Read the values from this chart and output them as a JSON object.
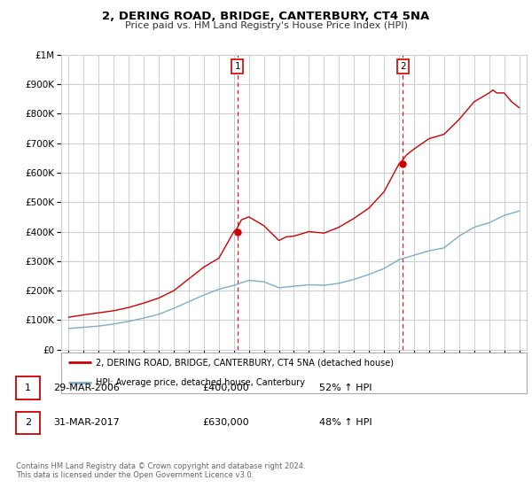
{
  "title": "2, DERING ROAD, BRIDGE, CANTERBURY, CT4 5NA",
  "subtitle": "Price paid vs. HM Land Registry's House Price Index (HPI)",
  "legend_line1": "2, DERING ROAD, BRIDGE, CANTERBURY, CT4 5NA (detached house)",
  "legend_line2": "HPI: Average price, detached house, Canterbury",
  "footer1": "Contains HM Land Registry data © Crown copyright and database right 2024.",
  "footer2": "This data is licensed under the Open Government Licence v3.0.",
  "transactions": [
    {
      "label": "1",
      "date": "29-MAR-2006",
      "price": "£400,000",
      "hpi": "52% ↑ HPI",
      "year": 2006.23,
      "price_val": 400000
    },
    {
      "label": "2",
      "date": "31-MAR-2017",
      "price": "£630,000",
      "hpi": "48% ↑ HPI",
      "year": 2017.25,
      "price_val": 630000
    }
  ],
  "ylim": [
    0,
    1000000
  ],
  "xlim": [
    1994.5,
    2025.5
  ],
  "red_color": "#cc0000",
  "blue_color": "#7aaccc",
  "background_color": "#ffffff",
  "grid_color": "#cccccc",
  "hpi_x": [
    1995,
    1995.5,
    1996,
    1996.5,
    1997,
    1997.5,
    1998,
    1998.5,
    1999,
    1999.5,
    2000,
    2000.5,
    2001,
    2001.5,
    2002,
    2002.5,
    2003,
    2003.5,
    2004,
    2004.5,
    2005,
    2005.5,
    2006,
    2006.5,
    2007,
    2007.5,
    2008,
    2008.5,
    2009,
    2009.5,
    2010,
    2010.5,
    2011,
    2011.5,
    2012,
    2012.5,
    2013,
    2013.5,
    2014,
    2014.5,
    2015,
    2015.5,
    2016,
    2016.5,
    2017,
    2017.5,
    2018,
    2018.5,
    2019,
    2019.5,
    2020,
    2020.5,
    2021,
    2021.5,
    2022,
    2022.5,
    2023,
    2023.5,
    2024,
    2024.5,
    2025
  ],
  "hpi_y": [
    72000,
    74000,
    76000,
    78000,
    80000,
    83500,
    87000,
    91500,
    96000,
    101500,
    107000,
    113500,
    120000,
    130000,
    140000,
    151500,
    163000,
    174000,
    185000,
    195000,
    205000,
    211500,
    218000,
    226500,
    235000,
    232500,
    230000,
    220000,
    210000,
    212500,
    215000,
    217500,
    220000,
    219000,
    218000,
    221500,
    225000,
    231500,
    238000,
    246500,
    255000,
    265000,
    275000,
    290000,
    305000,
    312500,
    320000,
    327500,
    335000,
    340000,
    345000,
    365000,
    385000,
    400000,
    415000,
    422500,
    430000,
    442500,
    455000,
    462500,
    470000
  ],
  "price_x": [
    1995,
    1995.5,
    1996,
    1996.5,
    1997,
    1997.5,
    1998,
    1998.5,
    1999,
    1999.5,
    2000,
    2000.5,
    2001,
    2001.5,
    2002,
    2002.5,
    2003,
    2003.5,
    2004,
    2004.5,
    2005,
    2005.5,
    2006,
    2006.2,
    2006.5,
    2007,
    2007.5,
    2008,
    2008.5,
    2009,
    2009.5,
    2010,
    2010.5,
    2011,
    2011.5,
    2012,
    2012.5,
    2013,
    2013.5,
    2014,
    2014.5,
    2015,
    2015.5,
    2016,
    2016.5,
    2017,
    2017.2,
    2017.5,
    2018,
    2018.5,
    2019,
    2019.5,
    2020,
    2020.5,
    2021,
    2021.5,
    2022,
    2022.5,
    2023,
    2023.25,
    2023.5,
    2024,
    2024.25,
    2024.5,
    2025
  ],
  "price_y": [
    110000,
    114000,
    118000,
    121500,
    125000,
    128500,
    132000,
    137500,
    143000,
    150500,
    158000,
    166500,
    175000,
    187500,
    200000,
    220000,
    240000,
    260000,
    280000,
    295000,
    310000,
    355000,
    400000,
    410000,
    440000,
    450000,
    435000,
    420000,
    395000,
    370000,
    382500,
    385000,
    392500,
    400000,
    397500,
    395000,
    405000,
    415000,
    430000,
    445000,
    462500,
    480000,
    507500,
    535000,
    582500,
    630000,
    640000,
    660000,
    680000,
    697500,
    715000,
    722500,
    730000,
    755000,
    780000,
    810000,
    840000,
    855000,
    870000,
    880000,
    870000,
    870000,
    855000,
    840000,
    820000
  ]
}
